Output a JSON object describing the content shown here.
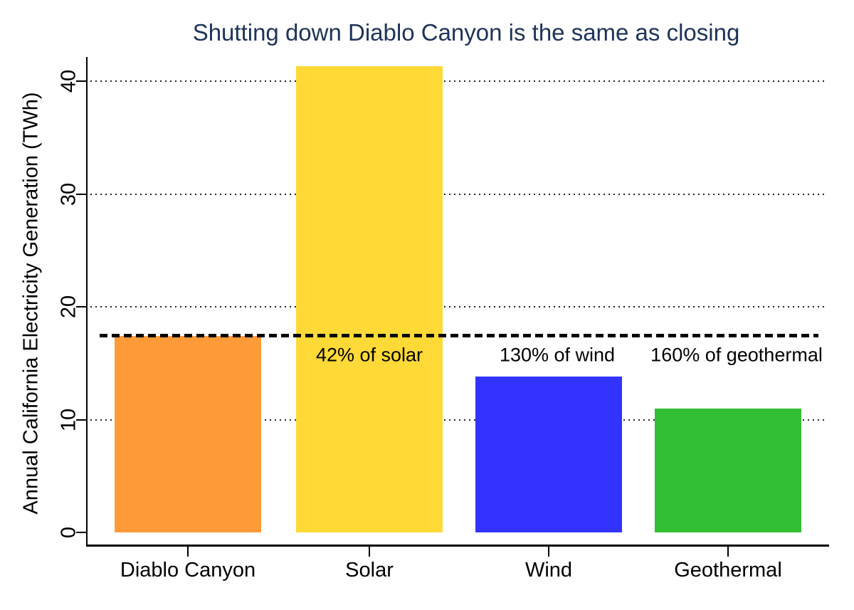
{
  "chart_data": {
    "type": "bar",
    "title": "Shutting down Diablo Canyon is the same as closing",
    "title_color": "#1d3359",
    "ylabel": "Annual California Electricity Generation (TWh)",
    "xlabel": "",
    "categories": [
      "Diablo Canyon",
      "Solar",
      "Wind",
      "Geothermal"
    ],
    "values": [
      17.4,
      41.3,
      13.8,
      11.0
    ],
    "bar_colors": [
      "#ff9a38",
      "#ffd936",
      "#3333ff",
      "#33bf33"
    ],
    "yticks": [
      0,
      10,
      20,
      30,
      40
    ],
    "ylim": [
      0,
      42.2
    ],
    "grid_at": [
      10,
      20,
      30,
      40
    ],
    "grid_style": "dotted",
    "legend": "none",
    "background": "#ffffff",
    "axis_color": "#000000",
    "reference_line": {
      "value": 17.5,
      "style": "dashed",
      "color": "#000000"
    },
    "annotations": [
      {
        "text": "42% of solar",
        "category": "Solar",
        "y": 15.7
      },
      {
        "text": "130% of wind",
        "category": "Wind",
        "y": 15.7
      },
      {
        "text": "160% of geothermal",
        "category": "Geothermal",
        "y": 15.7
      }
    ]
  }
}
